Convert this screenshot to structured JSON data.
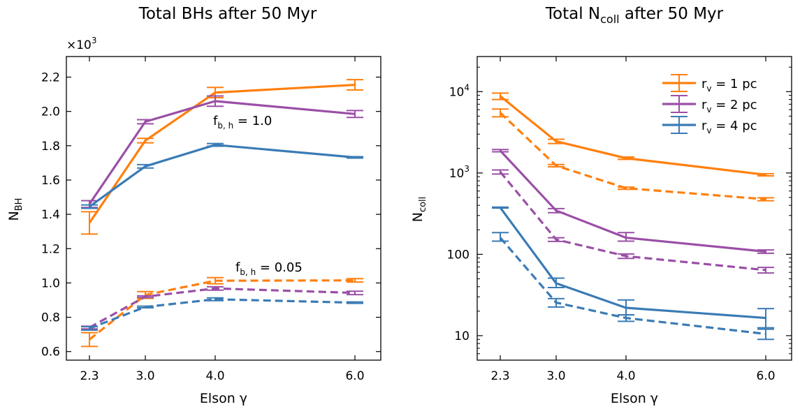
{
  "colors": {
    "r1": "#ff7f0e",
    "r2": "#9a4fa6",
    "r4": "#3a7bb5"
  },
  "chart_data": [
    {
      "type": "line",
      "title": "Total BHs after 50 Myr",
      "xlabel": "Elson γ",
      "ylabel_main": "N",
      "ylabel_sub": "BH",
      "scale_label": "×10",
      "scale_exp": "3",
      "x_ticks": [
        "2.3",
        "3.0",
        "4.0",
        "6.0"
      ],
      "y_ticks": [
        "0.6",
        "0.8",
        "1.0",
        "1.2",
        "1.4",
        "1.6",
        "1.8",
        "2.0",
        "2.2"
      ],
      "ylim": [
        0.55,
        2.32
      ],
      "annotations": [
        {
          "main": "f",
          "sub": "b, h",
          "rest": " = 1.0"
        },
        {
          "main": "f",
          "sub": "b, h",
          "rest": " = 0.05"
        }
      ],
      "series": [
        {
          "color_key": "r1",
          "dashed": false,
          "x": [
            2.3,
            3.0,
            4.0,
            6.0
          ],
          "y": [
            1.35,
            1.83,
            2.11,
            2.155
          ],
          "err": [
            0.065,
            0.013,
            0.03,
            0.03
          ]
        },
        {
          "color_key": "r2",
          "dashed": false,
          "x": [
            2.3,
            3.0,
            4.0,
            6.0
          ],
          "y": [
            1.46,
            1.94,
            2.06,
            1.985
          ],
          "err": [
            0.02,
            0.012,
            0.03,
            0.02
          ]
        },
        {
          "color_key": "r4",
          "dashed": false,
          "x": [
            2.3,
            3.0,
            4.0,
            6.0
          ],
          "y": [
            1.445,
            1.68,
            1.805,
            1.732
          ],
          "err": [
            0.01,
            0.01,
            0.008,
            0.004
          ]
        },
        {
          "color_key": "r1",
          "dashed": true,
          "x": [
            2.3,
            3.0,
            4.0,
            6.0
          ],
          "y": [
            0.67,
            0.93,
            1.013,
            1.015
          ],
          "err": [
            0.04,
            0.02,
            0.018,
            0.01
          ]
        },
        {
          "color_key": "r2",
          "dashed": true,
          "x": [
            2.3,
            3.0,
            4.0,
            6.0
          ],
          "y": [
            0.74,
            0.92,
            0.968,
            0.942
          ],
          "err": [
            0.008,
            0.005,
            0.01,
            0.01
          ]
        },
        {
          "color_key": "r4",
          "dashed": true,
          "x": [
            2.3,
            3.0,
            4.0,
            6.0
          ],
          "y": [
            0.735,
            0.86,
            0.905,
            0.885
          ],
          "err": [
            0.01,
            0.005,
            0.008,
            0.004
          ]
        }
      ]
    },
    {
      "type": "line",
      "title_main": "Total N",
      "title_sub": "coll",
      "title_rest": " after 50 Myr",
      "xlabel": "Elson γ",
      "ylabel_main": "N",
      "ylabel_sub": "coll",
      "yscale": "log",
      "x_ticks": [
        "2.3",
        "3.0",
        "4.0",
        "6.0"
      ],
      "y_ticks": [
        {
          "value": 10,
          "label": "10"
        },
        {
          "value": 100,
          "label": "100"
        },
        {
          "value": 1000,
          "base": "10",
          "exp": "3"
        },
        {
          "value": 10000,
          "base": "10",
          "exp": "4"
        }
      ],
      "ylim": [
        5,
        27000
      ],
      "legend": {
        "position": "top-right",
        "entries": [
          {
            "color_key": "r1",
            "main": "r",
            "sub": "v",
            "rest": " = 1 pc"
          },
          {
            "color_key": "r2",
            "main": "r",
            "sub": "v",
            "rest": " = 2 pc"
          },
          {
            "color_key": "r4",
            "main": "r",
            "sub": "v",
            "rest": " = 4 pc"
          }
        ]
      },
      "series": [
        {
          "color_key": "r1",
          "dashed": false,
          "x": [
            2.3,
            3.0,
            4.0,
            6.0
          ],
          "y": [
            8800,
            2450,
            1520,
            950
          ],
          "err_lo": [
            800,
            150,
            50,
            30
          ],
          "err_hi": [
            800,
            150,
            50,
            30
          ]
        },
        {
          "color_key": "r2",
          "dashed": false,
          "x": [
            2.3,
            3.0,
            4.0,
            6.0
          ],
          "y": [
            1880,
            345,
            160,
            108
          ],
          "err_lo": [
            60,
            20,
            15,
            5
          ],
          "err_hi": [
            60,
            20,
            25,
            5
          ]
        },
        {
          "color_key": "r4",
          "dashed": false,
          "x": [
            2.3,
            3.0,
            4.0,
            6.0
          ],
          "y": [
            375,
            44,
            22,
            16.5
          ],
          "err_lo": [
            5,
            5,
            4,
            4
          ],
          "err_hi": [
            5,
            7,
            5.5,
            5
          ]
        },
        {
          "color_key": "r1",
          "dashed": true,
          "x": [
            2.3,
            3.0,
            4.0,
            6.0
          ],
          "y": [
            5500,
            1230,
            650,
            475
          ],
          "err_lo": [
            600,
            40,
            20,
            20
          ],
          "err_hi": [
            600,
            40,
            20,
            20
          ]
        },
        {
          "color_key": "r2",
          "dashed": true,
          "x": [
            2.3,
            3.0,
            4.0,
            6.0
          ],
          "y": [
            1030,
            152,
            95,
            64
          ],
          "err_lo": [
            60,
            8,
            6,
            5
          ],
          "err_hi": [
            60,
            8,
            6,
            5
          ]
        },
        {
          "color_key": "r4",
          "dashed": true,
          "x": [
            2.3,
            3.0,
            4.0,
            6.0
          ],
          "y": [
            160,
            25.5,
            16.5,
            10.5
          ],
          "err_lo": [
            15,
            3,
            1.5,
            1.5
          ],
          "err_hi": [
            25,
            3,
            1.5,
            1.5
          ]
        }
      ]
    }
  ]
}
